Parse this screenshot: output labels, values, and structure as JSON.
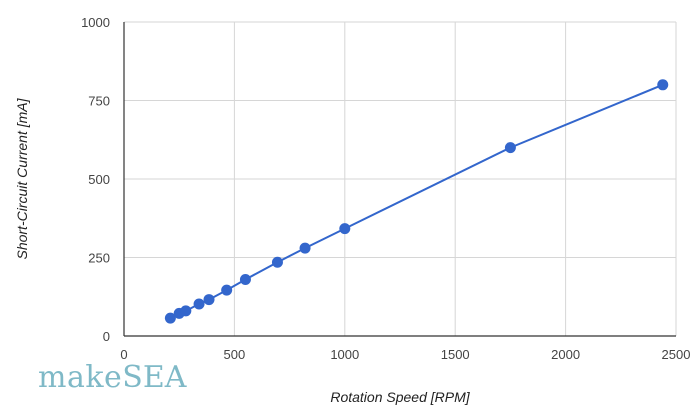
{
  "logo": {
    "text_lower": "make",
    "text_upper": "SEA"
  },
  "chart_data": {
    "type": "line",
    "xlabel": "Rotation Speed [RPM]",
    "ylabel": "Short-Circuit Current [mA]",
    "xlim": [
      0,
      2500
    ],
    "ylim": [
      0,
      1000
    ],
    "x_ticks": [
      0,
      500,
      1000,
      1500,
      2000,
      2500
    ],
    "y_ticks": [
      0,
      250,
      500,
      750,
      1000
    ],
    "grid": true,
    "series_color": "#3366cc",
    "series": [
      {
        "markers": true,
        "points": [
          {
            "x": 210,
            "y": 57
          },
          {
            "x": 250,
            "y": 72
          },
          {
            "x": 280,
            "y": 80
          },
          {
            "x": 340,
            "y": 102
          },
          {
            "x": 385,
            "y": 116
          },
          {
            "x": 465,
            "y": 146
          },
          {
            "x": 550,
            "y": 180
          },
          {
            "x": 695,
            "y": 235
          },
          {
            "x": 820,
            "y": 280
          },
          {
            "x": 1000,
            "y": 342
          },
          {
            "x": 1750,
            "y": 600
          },
          {
            "x": 2440,
            "y": 800
          }
        ]
      }
    ]
  }
}
